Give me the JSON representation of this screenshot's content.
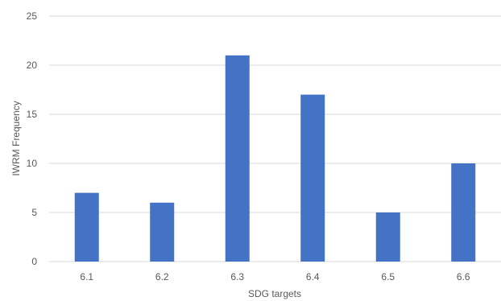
{
  "chart_data": {
    "type": "bar",
    "title": "",
    "xlabel": "SDG targets",
    "ylabel": "IWRM Frequency",
    "categories": [
      "6.1",
      "6.2",
      "6.3",
      "6.4",
      "6.5",
      "6.6"
    ],
    "values": [
      7,
      6,
      21,
      17,
      5,
      10
    ],
    "ylim": [
      0,
      25
    ],
    "yticks": [
      0,
      5,
      10,
      15,
      20,
      25
    ],
    "grid": true,
    "legend": "none",
    "bar_color": "#4472c4"
  }
}
